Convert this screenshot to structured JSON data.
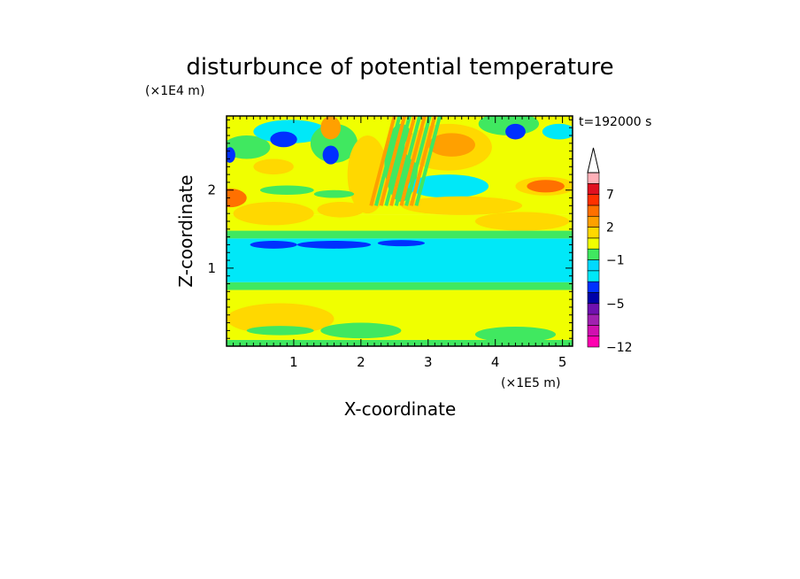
{
  "chart_data": {
    "type": "heatmap",
    "title": "disturbunce of potential temperature",
    "xlabel": "X-coordinate",
    "ylabel": "Z-coordinate",
    "x_unit": "(×1E5 m)",
    "y_unit": "(×1E4 m)",
    "time_label": "t=192000 s",
    "xlim": [
      0,
      5.15
    ],
    "ylim": [
      0,
      2.95
    ],
    "x_ticks": [
      "1",
      "2",
      "3",
      "4",
      "5"
    ],
    "y_ticks": [
      "1",
      "2"
    ],
    "colorbar": {
      "levels": [
        -12,
        -10,
        -8,
        -6,
        -5,
        -4,
        -3,
        -2,
        -1,
        0,
        1,
        2,
        3,
        5,
        7,
        9,
        11
      ],
      "labels": [
        "−12",
        "−5",
        "−1",
        "2",
        "7"
      ],
      "colors": [
        "#ff00b0",
        "#d010b0",
        "#a020b0",
        "#7010b0",
        "#0000a8",
        "#0030ff",
        "#00e8f8",
        "#00d9ff",
        "#40e860",
        "#f0ff00",
        "#ffd800",
        "#ffa000",
        "#ff7000",
        "#ff3000",
        "#e01020",
        "#ffb0b8"
      ]
    },
    "bands": [
      {
        "z": [
          0.0,
          0.08
        ],
        "level": "#40e860"
      },
      {
        "z": [
          0.08,
          0.72
        ],
        "level": "#f0ff00"
      },
      {
        "z": [
          0.72,
          0.82
        ],
        "level": "#40e860"
      },
      {
        "z": [
          0.82,
          1.38
        ],
        "level": "#00e8f8"
      },
      {
        "z": [
          1.38,
          1.48
        ],
        "level": "#40e860"
      },
      {
        "z": [
          1.48,
          1.68
        ],
        "level": "#f0ff00"
      },
      {
        "z": [
          1.68,
          2.95
        ],
        "level": "#f0ff00"
      }
    ],
    "features": [
      {
        "x": 0.05,
        "z": 1.9,
        "rx": 0.25,
        "rz": 0.12,
        "level": "#ff7000"
      },
      {
        "x": 0.7,
        "z": 2.3,
        "rx": 0.3,
        "rz": 0.1,
        "level": "#ffd800"
      },
      {
        "x": 0.7,
        "z": 1.7,
        "rx": 0.6,
        "rz": 0.15,
        "level": "#ffd800"
      },
      {
        "x": 0.9,
        "z": 2.0,
        "rx": 0.4,
        "rz": 0.06,
        "level": "#40e860"
      },
      {
        "x": 0.3,
        "z": 2.55,
        "rx": 0.35,
        "rz": 0.15,
        "level": "#40e860"
      },
      {
        "x": 0.95,
        "z": 2.75,
        "rx": 0.55,
        "rz": 0.15,
        "level": "#00e8f8"
      },
      {
        "x": 0.85,
        "z": 2.65,
        "rx": 0.2,
        "rz": 0.1,
        "level": "#0030ff"
      },
      {
        "x": 0.05,
        "z": 2.45,
        "rx": 0.08,
        "rz": 0.1,
        "level": "#0030ff"
      },
      {
        "x": 1.6,
        "z": 2.6,
        "rx": 0.35,
        "rz": 0.25,
        "level": "#40e860"
      },
      {
        "x": 1.55,
        "z": 2.45,
        "rx": 0.12,
        "rz": 0.12,
        "level": "#0030ff"
      },
      {
        "x": 1.55,
        "z": 2.8,
        "rx": 0.15,
        "rz": 0.15,
        "level": "#ffa000"
      },
      {
        "x": 2.1,
        "z": 2.2,
        "rx": 0.3,
        "rz": 0.5,
        "level": "#ffd800"
      },
      {
        "x": 1.7,
        "z": 1.75,
        "rx": 0.35,
        "rz": 0.1,
        "level": "#ffd800"
      },
      {
        "x": 1.6,
        "z": 1.95,
        "rx": 0.3,
        "rz": 0.05,
        "level": "#40e860"
      },
      {
        "x": 2.6,
        "z": 2.35,
        "rx": 0.25,
        "rz": 0.5,
        "level": "#40e860"
      },
      {
        "x": 3.3,
        "z": 2.55,
        "rx": 0.65,
        "rz": 0.3,
        "level": "#ffd800"
      },
      {
        "x": 3.35,
        "z": 2.58,
        "rx": 0.35,
        "rz": 0.15,
        "level": "#ffa000"
      },
      {
        "x": 3.3,
        "z": 2.05,
        "rx": 0.6,
        "rz": 0.15,
        "level": "#00e8f8"
      },
      {
        "x": 3.5,
        "z": 1.8,
        "rx": 0.9,
        "rz": 0.12,
        "level": "#ffd800"
      },
      {
        "x": 4.2,
        "z": 2.85,
        "rx": 0.45,
        "rz": 0.15,
        "level": "#40e860"
      },
      {
        "x": 4.3,
        "z": 2.75,
        "rx": 0.15,
        "rz": 0.1,
        "level": "#0030ff"
      },
      {
        "x": 4.95,
        "z": 2.75,
        "rx": 0.25,
        "rz": 0.1,
        "level": "#00e8f8"
      },
      {
        "x": 4.75,
        "z": 2.05,
        "rx": 0.45,
        "rz": 0.12,
        "level": "#ffd800"
      },
      {
        "x": 4.75,
        "z": 2.05,
        "rx": 0.28,
        "rz": 0.08,
        "level": "#ff7000"
      },
      {
        "x": 4.4,
        "z": 1.6,
        "rx": 0.7,
        "rz": 0.12,
        "level": "#ffd800"
      },
      {
        "x": 0.7,
        "z": 1.3,
        "rx": 0.35,
        "rz": 0.05,
        "level": "#0030ff"
      },
      {
        "x": 1.6,
        "z": 1.3,
        "rx": 0.55,
        "rz": 0.05,
        "level": "#0030ff"
      },
      {
        "x": 2.6,
        "z": 1.32,
        "rx": 0.35,
        "rz": 0.04,
        "level": "#0030ff"
      },
      {
        "x": 0.8,
        "z": 0.35,
        "rx": 0.8,
        "rz": 0.2,
        "level": "#ffd800"
      },
      {
        "x": 2.0,
        "z": 0.2,
        "rx": 0.6,
        "rz": 0.1,
        "level": "#40e860"
      },
      {
        "x": 4.3,
        "z": 0.15,
        "rx": 0.6,
        "rz": 0.1,
        "level": "#40e860"
      },
      {
        "x": 0.8,
        "z": 0.2,
        "rx": 0.5,
        "rz": 0.06,
        "level": "#40e860"
      }
    ],
    "wave_packet": {
      "x": [
        2.15,
        2.9
      ],
      "z": [
        1.8,
        2.95
      ],
      "level": "#ffa000"
    }
  }
}
